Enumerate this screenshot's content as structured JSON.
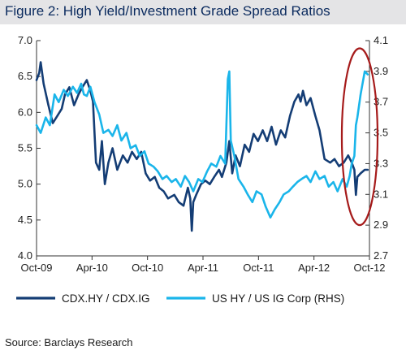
{
  "figure": {
    "title": "Figure 2: High Yield/Investment Grade Spread Ratios",
    "source": "Source: Barclays Research"
  },
  "colors": {
    "title_bg": "#e4e4e6",
    "title_text": "#0a2a5e",
    "cdx_series": "#143d75",
    "us_series": "#1ab5ea",
    "highlight_ellipse": "#a61b1b"
  },
  "chart_data": {
    "type": "line",
    "title": "Figure 2: High Yield/Investment Grade Spread Ratios",
    "x_tick_labels": [
      "Oct-09",
      "Apr-10",
      "Oct-10",
      "Apr-11",
      "Oct-11",
      "Apr-12",
      "Oct-12"
    ],
    "x_range": [
      "2009-10-01",
      "2012-10-31"
    ],
    "y_left": {
      "lim": [
        4.0,
        7.0
      ],
      "ticks": [
        "4.0",
        "4.5",
        "5.0",
        "5.5",
        "6.0",
        "6.5",
        "7.0"
      ]
    },
    "y_right": {
      "lim": [
        2.7,
        4.1
      ],
      "ticks": [
        "2.7",
        "2.9",
        "3.1",
        "3.3",
        "3.5",
        "3.7",
        "3.9",
        "4.1"
      ]
    },
    "grid": false,
    "legend": {
      "position": "bottom"
    },
    "annotation": {
      "type": "ellipse",
      "description_range": [
        "2012-08-15",
        "2012-10-31"
      ]
    },
    "series": [
      {
        "name": "CDX.HY / CDX.IG",
        "axis": "left",
        "points": [
          [
            "2009-10-01",
            6.45
          ],
          [
            "2009-10-10",
            6.55
          ],
          [
            "2009-10-15",
            6.7
          ],
          [
            "2009-10-25",
            6.4
          ],
          [
            "2009-11-10",
            6.1
          ],
          [
            "2009-11-25",
            5.85
          ],
          [
            "2009-12-10",
            5.95
          ],
          [
            "2009-12-25",
            6.05
          ],
          [
            "2010-01-05",
            6.25
          ],
          [
            "2010-01-20",
            6.35
          ],
          [
            "2010-02-05",
            6.1
          ],
          [
            "2010-02-20",
            6.25
          ],
          [
            "2010-03-05",
            6.35
          ],
          [
            "2010-03-20",
            6.45
          ],
          [
            "2010-04-01",
            6.3
          ],
          [
            "2010-04-10",
            6.15
          ],
          [
            "2010-04-20",
            5.3
          ],
          [
            "2010-05-01",
            5.2
          ],
          [
            "2010-05-10",
            5.6
          ],
          [
            "2010-05-20",
            5.0
          ],
          [
            "2010-06-01",
            5.3
          ],
          [
            "2010-06-15",
            5.5
          ],
          [
            "2010-07-01",
            5.2
          ],
          [
            "2010-07-20",
            5.4
          ],
          [
            "2010-08-05",
            5.3
          ],
          [
            "2010-08-20",
            5.45
          ],
          [
            "2010-09-05",
            5.35
          ],
          [
            "2010-09-20",
            5.45
          ],
          [
            "2010-10-05",
            5.15
          ],
          [
            "2010-10-20",
            5.05
          ],
          [
            "2010-11-05",
            5.1
          ],
          [
            "2010-11-20",
            4.95
          ],
          [
            "2010-12-05",
            4.9
          ],
          [
            "2010-12-20",
            4.8
          ],
          [
            "2011-01-10",
            4.85
          ],
          [
            "2011-01-25",
            4.75
          ],
          [
            "2011-02-10",
            4.7
          ],
          [
            "2011-02-25",
            4.95
          ],
          [
            "2011-03-05",
            4.8
          ],
          [
            "2011-03-10",
            4.35
          ],
          [
            "2011-03-15",
            4.75
          ],
          [
            "2011-03-25",
            4.85
          ],
          [
            "2011-04-10",
            5.0
          ],
          [
            "2011-04-25",
            5.05
          ],
          [
            "2011-05-10",
            5.0
          ],
          [
            "2011-05-25",
            5.1
          ],
          [
            "2011-06-10",
            5.2
          ],
          [
            "2011-06-20",
            5.1
          ],
          [
            "2011-07-05",
            5.3
          ],
          [
            "2011-07-15",
            5.6
          ],
          [
            "2011-07-25",
            5.15
          ],
          [
            "2011-08-05",
            5.4
          ],
          [
            "2011-08-20",
            5.25
          ],
          [
            "2011-09-05",
            5.55
          ],
          [
            "2011-09-20",
            5.45
          ],
          [
            "2011-10-05",
            5.7
          ],
          [
            "2011-10-20",
            5.6
          ],
          [
            "2011-11-05",
            5.75
          ],
          [
            "2011-11-20",
            5.6
          ],
          [
            "2011-12-05",
            5.8
          ],
          [
            "2011-12-20",
            5.55
          ],
          [
            "2012-01-05",
            5.75
          ],
          [
            "2012-01-20",
            5.65
          ],
          [
            "2012-02-05",
            5.95
          ],
          [
            "2012-02-20",
            6.15
          ],
          [
            "2012-03-05",
            6.25
          ],
          [
            "2012-03-12",
            6.15
          ],
          [
            "2012-03-20",
            6.3
          ],
          [
            "2012-04-01",
            6.1
          ],
          [
            "2012-04-15",
            6.2
          ],
          [
            "2012-05-01",
            5.95
          ],
          [
            "2012-05-15",
            5.75
          ],
          [
            "2012-06-01",
            5.35
          ],
          [
            "2012-06-20",
            5.3
          ],
          [
            "2012-07-05",
            5.35
          ],
          [
            "2012-07-20",
            5.25
          ],
          [
            "2012-08-05",
            5.3
          ],
          [
            "2012-08-20",
            5.4
          ],
          [
            "2012-09-01",
            5.3
          ],
          [
            "2012-09-10",
            5.2
          ],
          [
            "2012-09-15",
            4.85
          ],
          [
            "2012-09-20",
            5.1
          ],
          [
            "2012-10-01",
            5.15
          ],
          [
            "2012-10-15",
            5.2
          ],
          [
            "2012-10-25",
            5.2
          ]
        ]
      },
      {
        "name": "US HY / US IG Corp (RHS)",
        "axis": "right",
        "points": [
          [
            "2009-10-01",
            3.55
          ],
          [
            "2009-10-15",
            3.5
          ],
          [
            "2009-11-01",
            3.6
          ],
          [
            "2009-11-15",
            3.55
          ],
          [
            "2009-12-01",
            3.75
          ],
          [
            "2009-12-15",
            3.7
          ],
          [
            "2010-01-01",
            3.78
          ],
          [
            "2010-01-15",
            3.74
          ],
          [
            "2010-02-01",
            3.8
          ],
          [
            "2010-02-15",
            3.76
          ],
          [
            "2010-03-01",
            3.82
          ],
          [
            "2010-03-10",
            3.75
          ],
          [
            "2010-03-20",
            3.74
          ],
          [
            "2010-04-01",
            3.8
          ],
          [
            "2010-04-15",
            3.7
          ],
          [
            "2010-05-01",
            3.62
          ],
          [
            "2010-05-15",
            3.5
          ],
          [
            "2010-06-01",
            3.52
          ],
          [
            "2010-06-15",
            3.48
          ],
          [
            "2010-07-01",
            3.55
          ],
          [
            "2010-07-15",
            3.45
          ],
          [
            "2010-08-01",
            3.5
          ],
          [
            "2010-08-15",
            3.4
          ],
          [
            "2010-09-01",
            3.42
          ],
          [
            "2010-09-15",
            3.35
          ],
          [
            "2010-10-01",
            3.38
          ],
          [
            "2010-10-15",
            3.3
          ],
          [
            "2010-11-01",
            3.28
          ],
          [
            "2010-11-15",
            3.25
          ],
          [
            "2010-12-01",
            3.2
          ],
          [
            "2010-12-15",
            3.22
          ],
          [
            "2011-01-01",
            3.18
          ],
          [
            "2011-01-15",
            3.2
          ],
          [
            "2011-02-01",
            3.15
          ],
          [
            "2011-02-15",
            3.22
          ],
          [
            "2011-03-01",
            3.18
          ],
          [
            "2011-03-15",
            3.12
          ],
          [
            "2011-04-01",
            3.2
          ],
          [
            "2011-04-15",
            3.18
          ],
          [
            "2011-05-01",
            3.25
          ],
          [
            "2011-05-15",
            3.3
          ],
          [
            "2011-06-01",
            3.28
          ],
          [
            "2011-06-15",
            3.35
          ],
          [
            "2011-07-01",
            3.3
          ],
          [
            "2011-07-10",
            3.85
          ],
          [
            "2011-07-15",
            3.9
          ],
          [
            "2011-07-20",
            3.45
          ],
          [
            "2011-08-01",
            3.35
          ],
          [
            "2011-08-15",
            3.2
          ],
          [
            "2011-09-01",
            3.15
          ],
          [
            "2011-09-15",
            3.1
          ],
          [
            "2011-10-01",
            3.05
          ],
          [
            "2011-10-15",
            3.12
          ],
          [
            "2011-11-01",
            3.1
          ],
          [
            "2011-11-15",
            3.02
          ],
          [
            "2011-12-01",
            2.95
          ],
          [
            "2011-12-15",
            3.0
          ],
          [
            "2012-01-01",
            3.05
          ],
          [
            "2012-01-15",
            3.1
          ],
          [
            "2012-02-01",
            3.12
          ],
          [
            "2012-02-15",
            3.15
          ],
          [
            "2012-03-01",
            3.18
          ],
          [
            "2012-03-15",
            3.2
          ],
          [
            "2012-04-01",
            3.22
          ],
          [
            "2012-04-15",
            3.18
          ],
          [
            "2012-05-01",
            3.25
          ],
          [
            "2012-05-15",
            3.2
          ],
          [
            "2012-06-01",
            3.22
          ],
          [
            "2012-06-15",
            3.15
          ],
          [
            "2012-07-01",
            3.18
          ],
          [
            "2012-07-15",
            3.12
          ],
          [
            "2012-08-01",
            3.2
          ],
          [
            "2012-08-15",
            3.15
          ],
          [
            "2012-08-25",
            3.22
          ],
          [
            "2012-09-01",
            3.3
          ],
          [
            "2012-09-10",
            3.35
          ],
          [
            "2012-09-15",
            3.55
          ],
          [
            "2012-09-20",
            3.6
          ],
          [
            "2012-10-01",
            3.75
          ],
          [
            "2012-10-15",
            3.9
          ],
          [
            "2012-10-25",
            3.88
          ]
        ]
      }
    ]
  }
}
